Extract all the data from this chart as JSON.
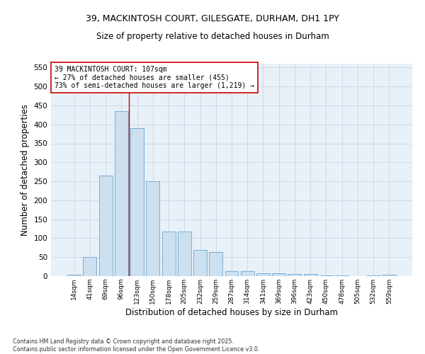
{
  "title_line1": "39, MACKINTOSH COURT, GILESGATE, DURHAM, DH1 1PY",
  "title_line2": "Size of property relative to detached houses in Durham",
  "xlabel": "Distribution of detached houses by size in Durham",
  "ylabel": "Number of detached properties",
  "bar_color": "#cce0f0",
  "bar_edge_color": "#7bafd4",
  "categories": [
    "14sqm",
    "41sqm",
    "69sqm",
    "96sqm",
    "123sqm",
    "150sqm",
    "178sqm",
    "205sqm",
    "232sqm",
    "259sqm",
    "287sqm",
    "314sqm",
    "341sqm",
    "369sqm",
    "396sqm",
    "423sqm",
    "450sqm",
    "478sqm",
    "505sqm",
    "532sqm",
    "559sqm"
  ],
  "values": [
    3,
    51,
    266,
    435,
    390,
    250,
    117,
    117,
    70,
    63,
    13,
    13,
    8,
    7,
    6,
    5,
    2,
    1,
    0,
    1,
    3
  ],
  "ylim": [
    0,
    560
  ],
  "yticks": [
    0,
    50,
    100,
    150,
    200,
    250,
    300,
    350,
    400,
    450,
    500,
    550
  ],
  "annotation_line1": "39 MACKINTOSH COURT: 107sqm",
  "annotation_line2": "← 27% of detached houses are smaller (455)",
  "annotation_line3": "73% of semi-detached houses are larger (1,219) →",
  "annotation_color": "#cc0000",
  "grid_color": "#c8d8e8",
  "background_color": "#e8f0f8",
  "footnote1": "Contains HM Land Registry data © Crown copyright and database right 2025.",
  "footnote2": "Contains public sector information licensed under the Open Government Licence v3.0."
}
